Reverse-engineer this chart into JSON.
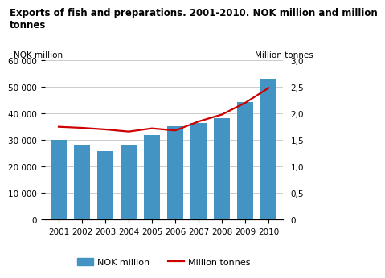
{
  "title_line1": "Exports of fish and preparations. 2001-2010. NOK million and million",
  "title_line2": "tonnes",
  "years": [
    2001,
    2002,
    2003,
    2004,
    2005,
    2006,
    2007,
    2008,
    2009,
    2010
  ],
  "nok_values": [
    30200,
    28200,
    25800,
    27900,
    31800,
    35300,
    36500,
    38200,
    44200,
    53000
  ],
  "tonnes_values": [
    1.75,
    1.73,
    1.7,
    1.66,
    1.72,
    1.68,
    1.85,
    1.98,
    2.2,
    2.48
  ],
  "bar_color": "#4393c3",
  "line_color": "#cc0000",
  "ylabel_left": "NOK million",
  "ylabel_right": "Million tonnes",
  "ylim_left": [
    0,
    60000
  ],
  "ylim_right": [
    0,
    3.0
  ],
  "yticks_left": [
    0,
    10000,
    20000,
    30000,
    40000,
    50000,
    60000
  ],
  "ytick_labels_left": [
    "0",
    "10 000",
    "20 000",
    "30 000",
    "40 000",
    "50 000",
    "60 000"
  ],
  "yticks_right": [
    0,
    0.5,
    1.0,
    1.5,
    2.0,
    2.5,
    3.0
  ],
  "ytick_labels_right": [
    "0",
    "0,5",
    "1,0",
    "1,5",
    "2,0",
    "2,5",
    "3,0"
  ],
  "legend_bar_label": "NOK million",
  "legend_line_label": "Million tonnes",
  "background_color": "#ffffff",
  "grid_color": "#cccccc",
  "title_fontsize": 8.5,
  "axis_label_fontsize": 7.5,
  "tick_fontsize": 7.5,
  "legend_fontsize": 8
}
